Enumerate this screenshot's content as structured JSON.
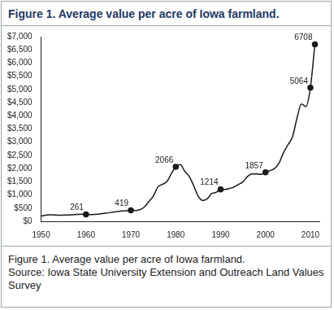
{
  "chart_data": {
    "type": "line",
    "title": "Figure 1.  Average value per acre of Iowa farmland.",
    "caption": [
      "Figure 1. Average value per acre of Iowa farmland.",
      "Source: Iowa State University Extension and Outreach Land Values Survey"
    ],
    "x": [
      1950,
      1951,
      1952,
      1953,
      1954,
      1955,
      1956,
      1957,
      1958,
      1959,
      1960,
      1961,
      1962,
      1963,
      1964,
      1965,
      1966,
      1967,
      1968,
      1969,
      1970,
      1971,
      1972,
      1973,
      1974,
      1975,
      1976,
      1977,
      1978,
      1979,
      1980,
      1981,
      1982,
      1983,
      1984,
      1985,
      1986,
      1987,
      1988,
      1989,
      1990,
      1991,
      1992,
      1993,
      1994,
      1995,
      1996,
      1997,
      1998,
      1999,
      2000,
      2001,
      2002,
      2003,
      2004,
      2005,
      2006,
      2007,
      2008,
      2009,
      2010,
      2011
    ],
    "values": [
      200,
      230,
      250,
      240,
      230,
      240,
      240,
      250,
      260,
      270,
      261,
      255,
      265,
      280,
      300,
      320,
      350,
      370,
      390,
      400,
      419,
      410,
      440,
      540,
      750,
      950,
      1300,
      1400,
      1500,
      1800,
      2066,
      2150,
      1900,
      1700,
      1350,
      950,
      790,
      850,
      1050,
      1100,
      1214,
      1210,
      1250,
      1300,
      1400,
      1500,
      1700,
      1800,
      1800,
      1780,
      1857,
      1920,
      2000,
      2200,
      2600,
      2900,
      3200,
      3900,
      4450,
      4350,
      5064,
      6708
    ],
    "value_labels": [
      null,
      null,
      null,
      null,
      null,
      null,
      null,
      null,
      null,
      null,
      "261",
      null,
      null,
      null,
      null,
      null,
      null,
      null,
      null,
      null,
      "419",
      null,
      null,
      null,
      null,
      null,
      null,
      null,
      null,
      null,
      "2066",
      null,
      null,
      null,
      null,
      null,
      null,
      null,
      null,
      null,
      "1214",
      null,
      null,
      null,
      null,
      null,
      null,
      null,
      null,
      null,
      "1857",
      null,
      null,
      null,
      null,
      null,
      null,
      null,
      null,
      null,
      "5064",
      "6708"
    ],
    "data_labels": true,
    "marker": "circle",
    "color": "#1a1a1a",
    "xlim": [
      1950,
      2012
    ],
    "xticks": [
      1950,
      1960,
      1970,
      1980,
      1990,
      2000,
      2010
    ],
    "ylim": [
      0,
      7000
    ],
    "yticks": [
      {
        "value": 0,
        "label": "$0"
      },
      {
        "value": 500,
        "label": "$500"
      },
      {
        "value": 1000,
        "label": "$1,000"
      },
      {
        "value": 1500,
        "label": "$1,500"
      },
      {
        "value": 2000,
        "label": "$2,000"
      },
      {
        "value": 2500,
        "label": "$2,500"
      },
      {
        "value": 3000,
        "label": "$3,000"
      },
      {
        "value": 3500,
        "label": "$3,500"
      },
      {
        "value": 4000,
        "label": "$4,000"
      },
      {
        "value": 4500,
        "label": "$4,500"
      },
      {
        "value": 5000,
        "label": "$5,000"
      },
      {
        "value": 5500,
        "label": "$5,500"
      },
      {
        "value": 6000,
        "label": "$6,000"
      },
      {
        "value": 6500,
        "label": "$6,500"
      },
      {
        "value": 7000,
        "label": "$7,000"
      }
    ],
    "grid": false
  }
}
